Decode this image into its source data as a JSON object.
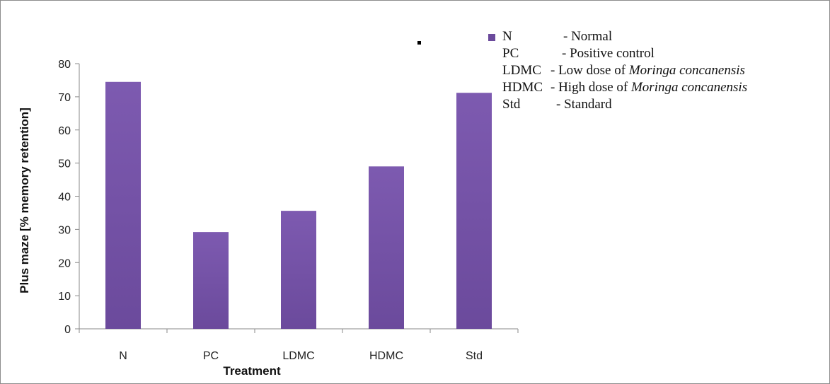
{
  "chart_data": {
    "type": "bar",
    "categories": [
      "N",
      "PC",
      "LDMC",
      "HDMC",
      "Std"
    ],
    "values": [
      74.5,
      29.2,
      35.6,
      49.0,
      71.2
    ],
    "xlabel": "Treatment",
    "ylabel": "Plus maze [% memory retention]",
    "ylim": [
      0,
      80
    ],
    "yticks": [
      0,
      10,
      20,
      30,
      40,
      50,
      60,
      70,
      80
    ],
    "grid": false,
    "legend_position": "top-right",
    "bar_color": "#6b4a9c",
    "bar_color_light": "#7d5ab0"
  },
  "legend": {
    "entries": [
      {
        "abbr": "N",
        "desc": "- Normal"
      },
      {
        "abbr": "PC",
        "desc": "- Positive control"
      },
      {
        "abbr": "LDMC",
        "desc": "- Low dose of ",
        "italic": "Moringa concanensis"
      },
      {
        "abbr": "HDMC",
        "desc": "- High dose of ",
        "italic": "Moringa concanensis"
      },
      {
        "abbr": "Std",
        "desc": "- Standard"
      }
    ]
  }
}
